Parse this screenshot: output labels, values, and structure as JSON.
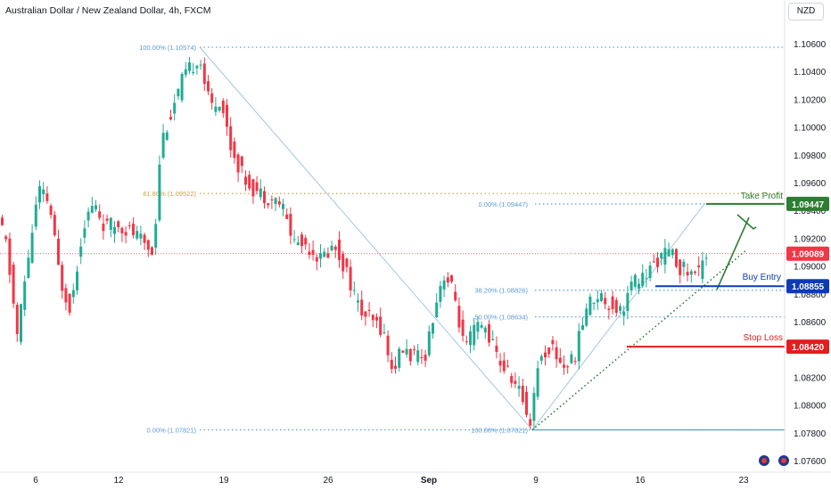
{
  "chart_title": "Australian Dollar / New Zealand Dollar, 4h, FXCM",
  "currency_button": "NZD",
  "colors": {
    "up": "#22ab94",
    "down": "#f23645",
    "fib": "#5b9bd5",
    "fib618": "#c8a23c",
    "take_profit": "#2e7d32",
    "buy_entry": "#0d3bb5",
    "stop_loss": "#e01e1e",
    "current": "#f23645"
  },
  "chart_data": {
    "type": "candlestick",
    "symbol": "AUDNZD",
    "timeframe": "4h",
    "ylim": [
      1.0752,
      1.1072
    ],
    "y_ticks": [
      "1.10600",
      "1.10400",
      "1.10200",
      "1.10000",
      "1.09800",
      "1.09600",
      "1.09400",
      "1.09200",
      "1.09000",
      "1.08800",
      "1.08600",
      "1.08400",
      "1.08200",
      "1.08000",
      "1.07800",
      "1.07600"
    ],
    "x_ticks": [
      "6",
      "12",
      "19",
      "26",
      "Sep",
      "9",
      "16",
      "23"
    ],
    "price_path": [
      [
        0,
        1.0935
      ],
      [
        10,
        1.0915
      ],
      [
        22,
        1.085
      ],
      [
        34,
        1.0905
      ],
      [
        46,
        1.0955
      ],
      [
        58,
        1.0945
      ],
      [
        70,
        1.089
      ],
      [
        82,
        1.087
      ],
      [
        96,
        1.093
      ],
      [
        108,
        1.0945
      ],
      [
        120,
        1.0928
      ],
      [
        135,
        1.093
      ],
      [
        150,
        1.0925
      ],
      [
        162,
        1.0918
      ],
      [
        175,
        1.091
      ],
      [
        183,
        1.099
      ],
      [
        195,
        1.101
      ],
      [
        208,
        1.1035
      ],
      [
        220,
        1.1045
      ],
      [
        226,
        1.1052
      ],
      [
        238,
        1.1015
      ],
      [
        250,
        1.102
      ],
      [
        262,
        1.0985
      ],
      [
        275,
        1.0965
      ],
      [
        288,
        1.0955
      ],
      [
        302,
        1.095
      ],
      [
        318,
        1.0945
      ],
      [
        332,
        1.0918
      ],
      [
        348,
        1.0915
      ],
      [
        362,
        1.0905
      ],
      [
        378,
        1.0915
      ],
      [
        392,
        1.0895
      ],
      [
        406,
        1.0868
      ],
      [
        420,
        1.086
      ],
      [
        432,
        1.0855
      ],
      [
        442,
        1.0825
      ],
      [
        454,
        1.084
      ],
      [
        466,
        1.0835
      ],
      [
        478,
        1.0832
      ],
      [
        490,
        1.087
      ],
      [
        500,
        1.0895
      ],
      [
        512,
        1.088
      ],
      [
        524,
        1.0838
      ],
      [
        536,
        1.0856
      ],
      [
        548,
        1.0855
      ],
      [
        562,
        1.0832
      ],
      [
        576,
        1.082
      ],
      [
        588,
        1.0806
      ],
      [
        597,
        1.0787
      ],
      [
        606,
        1.083
      ],
      [
        620,
        1.0843
      ],
      [
        634,
        1.0828
      ],
      [
        646,
        1.0832
      ],
      [
        660,
        1.087
      ],
      [
        672,
        1.088
      ],
      [
        686,
        1.0873
      ],
      [
        700,
        1.0868
      ],
      [
        712,
        1.0888
      ],
      [
        726,
        1.0892
      ],
      [
        740,
        1.0905
      ],
      [
        754,
        1.091
      ],
      [
        764,
        1.09
      ],
      [
        776,
        1.0895
      ],
      [
        786,
        1.0895
      ],
      [
        791,
        1.0909
      ]
    ],
    "last_price": 1.09089,
    "fibonacci": [
      {
        "label": "100.00% (1.10574)",
        "price": 1.10574
      },
      {
        "label": "61.80% (1.09522)",
        "price": 1.09522
      },
      {
        "label": "0.00% (1.07821)",
        "price": 1.07821
      },
      {
        "label": "0.00% (1.09447)",
        "price": 1.09447
      },
      {
        "label": "38.20% (1.08826)",
        "price": 1.08826
      },
      {
        "label": "50.00% (1.08634)",
        "price": 1.08634
      },
      {
        "label": "100.00% (1.07821)",
        "price": 1.07821
      }
    ],
    "annotations": {
      "take_profit": {
        "label": "Take Profit",
        "price_label": "1.09447",
        "price": 1.09447
      },
      "buy_entry": {
        "label": "Buy Entry",
        "price_label": "1.08855",
        "price": 1.08855
      },
      "stop_loss": {
        "label": "Stop Loss",
        "price_label": "1.08420",
        "price": 1.0842
      },
      "current_price_label": "1.09089"
    }
  }
}
